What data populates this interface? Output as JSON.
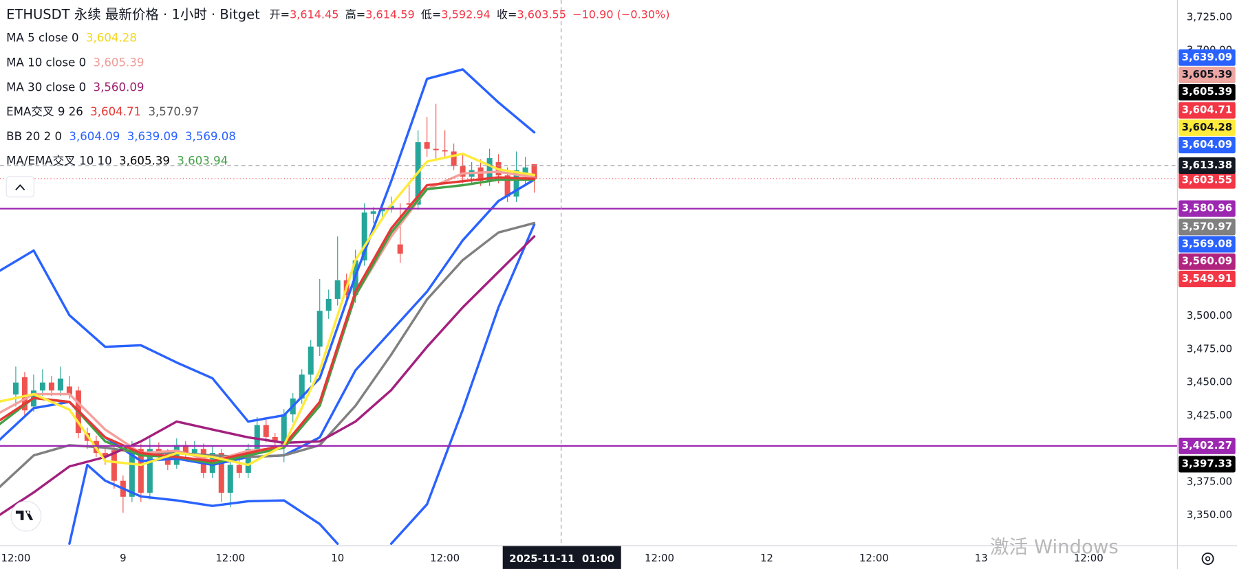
{
  "chart_data": {
    "type": "candlestick",
    "header": {
      "title": "ETHUSDT 永续 最新价格 · 1小时 · Bitget",
      "ohlc_labels": [
        "开=",
        "高=",
        "低=",
        "收="
      ],
      "ohlc_value_labels": [
        "3,614.45",
        "3,614.59",
        "3,592.94",
        "3,603.55"
      ],
      "change": "−10.90 (−0.30%)"
    },
    "legend": [
      {
        "name": "MA 5 close 0",
        "values": [
          "3,604.28"
        ],
        "colors": [
          "#f2d51b"
        ]
      },
      {
        "name": "MA 10 close 0",
        "values": [
          "3,605.39"
        ],
        "colors": [
          "#ee9c98"
        ]
      },
      {
        "name": "MA 30 close 0",
        "values": [
          "3,560.09"
        ],
        "colors": [
          "#9c1f6e"
        ]
      },
      {
        "name": "EMA交叉 9 26",
        "values": [
          "3,604.71",
          "3,570.97"
        ],
        "colors": [
          "#e53935",
          "#555555"
        ]
      },
      {
        "name": "BB 20 2 0",
        "values": [
          "3,604.09",
          "3,639.09",
          "3,569.08"
        ],
        "colors": [
          "#2962ff",
          "#2962ff",
          "#2962ff"
        ]
      },
      {
        "name": "MA/EMA交叉 10 10",
        "values": [
          "3,605.39",
          "3,603.94"
        ],
        "colors": [
          "#000000",
          "#43a047"
        ]
      }
    ],
    "xlim": [
      -1.765,
      129.9
    ],
    "ylim": [
      3327.4,
      3738.05
    ],
    "yticks": [
      {
        "value": 3725,
        "label": "3,725.00"
      },
      {
        "value": 3700,
        "label": "3,700.00"
      },
      {
        "value": 3500,
        "label": "3,500.00"
      },
      {
        "value": 3475,
        "label": "3,475.00"
      },
      {
        "value": 3450,
        "label": "3,450.00"
      },
      {
        "value": 3425,
        "label": "3,425.00"
      },
      {
        "value": 3375,
        "label": "3,375.00"
      },
      {
        "value": 3350,
        "label": "3,350.00"
      }
    ],
    "xticks": [
      {
        "value": 0,
        "label": "12:00"
      },
      {
        "value": 12,
        "label": "9"
      },
      {
        "value": 24,
        "label": "12:00"
      },
      {
        "value": 36,
        "label": "10"
      },
      {
        "value": 48,
        "label": "12:00"
      },
      {
        "value": 72,
        "label": "12:00"
      },
      {
        "value": 84,
        "label": "12"
      },
      {
        "value": 96,
        "label": "12:00"
      },
      {
        "value": 108,
        "label": "13"
      },
      {
        "value": 120,
        "label": "12:00"
      }
    ],
    "up_color": "#26a69a",
    "down_color": "#ef5350",
    "candles": {
      "x": [
        0,
        1,
        2,
        3,
        4,
        5,
        6,
        7,
        8,
        9,
        10,
        11,
        12,
        13,
        14,
        15,
        16,
        17,
        18,
        19,
        20,
        21,
        22,
        23,
        24,
        25,
        26,
        27,
        28,
        29,
        30,
        31,
        32,
        33,
        34,
        35,
        36,
        37,
        38,
        39,
        40,
        41,
        42,
        43,
        44,
        45,
        46,
        47,
        48,
        49,
        50,
        51,
        52,
        53,
        54,
        55,
        56,
        57,
        58
      ],
      "open": [
        3441,
        3454,
        3432,
        3444,
        3450,
        3444,
        3447,
        3444,
        3412,
        3406,
        3397,
        3399,
        3376,
        3364,
        3400,
        3367,
        3400,
        3397,
        3388,
        3403,
        3397,
        3400,
        3382,
        3397,
        3367,
        3388,
        3382,
        3400,
        3418,
        3409,
        3403,
        3426,
        3438,
        3456,
        3477,
        3504,
        3513,
        3527,
        3516,
        3542,
        3577,
        3579,
        3581,
        3554,
        3585,
        3584,
        3631,
        3626,
        3625,
        3624,
        3613,
        3605,
        3612,
        3602,
        3616,
        3606,
        3590,
        3605,
        3614.45
      ],
      "high": [
        3462,
        3458,
        3456,
        3460,
        3455,
        3462,
        3455,
        3447,
        3416,
        3410,
        3402,
        3404,
        3380,
        3406,
        3404,
        3408,
        3405,
        3400,
        3408,
        3406,
        3406,
        3404,
        3402,
        3400,
        3392,
        3392,
        3404,
        3424,
        3422,
        3412,
        3430,
        3442,
        3460,
        3482,
        3528,
        3520,
        3560,
        3532,
        3550,
        3585,
        3582,
        3585,
        3590,
        3585,
        3600,
        3640,
        3650,
        3660,
        3640,
        3630,
        3622,
        3616,
        3618,
        3626,
        3622,
        3612,
        3624,
        3620,
        3614.59
      ],
      "low": [
        3432,
        3425,
        3428,
        3440,
        3440,
        3440,
        3438,
        3408,
        3400,
        3394,
        3388,
        3370,
        3352,
        3360,
        3360,
        3362,
        3392,
        3384,
        3385,
        3392,
        3394,
        3378,
        3378,
        3360,
        3356,
        3378,
        3378,
        3396,
        3405,
        3400,
        3390,
        3420,
        3434,
        3450,
        3470,
        3498,
        3508,
        3512,
        3510,
        3538,
        3570,
        3574,
        3578,
        3540,
        3578,
        3580,
        3620,
        3618,
        3620,
        3610,
        3600,
        3600,
        3598,
        3598,
        3600,
        3586,
        3586,
        3598,
        3592.94
      ],
      "close": [
        3450,
        3429,
        3444,
        3450,
        3444,
        3453,
        3441,
        3412,
        3406,
        3397,
        3394,
        3376,
        3364,
        3400,
        3367,
        3400,
        3397,
        3388,
        3403,
        3397,
        3400,
        3382,
        3397,
        3367,
        3388,
        3382,
        3400,
        3418,
        3409,
        3406,
        3426,
        3438,
        3456,
        3477,
        3504,
        3513,
        3527,
        3516,
        3542,
        3578,
        3579,
        3581,
        3583,
        3547,
        3584,
        3631,
        3626,
        3625,
        3624,
        3613,
        3605,
        3610,
        3602,
        3619,
        3606,
        3590,
        3610,
        3612,
        3603.55
      ]
    },
    "lines": [
      {
        "color": "#2962ff",
        "width": 3,
        "x": [
          -2,
          2,
          6,
          10,
          14,
          18,
          22,
          26,
          30,
          34,
          38,
          42,
          46,
          50,
          54,
          58
        ],
        "values": [
          3533.3,
          3549.4,
          3500.7,
          3476.9,
          3478.1,
          3465.1,
          3453.2,
          3420.6,
          3425.3,
          3453.2,
          3530.4,
          3601.6,
          3678.7,
          3685.8,
          3660.9,
          3638.4
        ]
      },
      {
        "color": "#2962ff",
        "width": 3,
        "x": [
          6,
          8,
          10,
          14,
          18,
          22,
          26,
          30,
          34,
          36,
          39,
          42,
          46,
          50,
          54,
          58
        ],
        "values": [
          3328.6,
          3388.0,
          3376.1,
          3364.2,
          3361.2,
          3357.1,
          3360.6,
          3361.2,
          3343.4,
          3328.6,
          null,
          3328.6,
          3358.3,
          3429.5,
          3506.6,
          3569.0
        ]
      },
      {
        "color": "#2962ff",
        "width": 3,
        "x": [
          -2,
          2,
          6,
          10,
          14,
          18,
          22,
          26,
          30,
          34,
          38,
          42,
          46,
          50,
          54,
          58
        ],
        "values": [
          3405.7,
          3430.7,
          3435.4,
          3408.7,
          3390.9,
          3392.7,
          3388.0,
          3393.9,
          3395.1,
          3408.7,
          3459.2,
          3488.8,
          3518.5,
          3557.1,
          3586.7,
          3602.8
        ]
      },
      {
        "color": "#808080",
        "width": 3,
        "x": [
          -2,
          2,
          6,
          10,
          14,
          18,
          22,
          26,
          30,
          34,
          38,
          42,
          46,
          50,
          54,
          58
        ],
        "values": [
          3370.1,
          3395.1,
          3402.8,
          3401.0,
          3396.9,
          3396.9,
          3395.1,
          3393.9,
          3395.1,
          3402.8,
          3432.5,
          3471.0,
          3512.6,
          3542.2,
          3563.0,
          3570.1
        ]
      },
      {
        "color": "#a3207e",
        "width": 3,
        "x": [
          -2,
          2,
          6,
          10,
          14,
          18,
          22,
          26,
          30,
          34,
          38,
          42,
          46,
          50,
          54,
          58
        ],
        "values": [
          3349.4,
          3367.2,
          3386.8,
          3393.9,
          3405.7,
          3420.6,
          3414.6,
          3408.7,
          3404.6,
          3405.7,
          3420.6,
          3444.3,
          3476.9,
          3506.6,
          3533.3,
          3560.0
        ]
      },
      {
        "color": "#f4a09c",
        "width": 3,
        "x": [
          -2,
          2,
          6,
          10,
          14,
          18,
          22,
          26,
          30,
          34,
          38,
          42,
          46,
          50,
          54,
          58
        ],
        "values": [
          3426.5,
          3441.3,
          3441.3,
          3414.6,
          3396.9,
          3398.6,
          3390.9,
          3398.6,
          3401.0,
          3432.5,
          3515.5,
          3560.0,
          3595.6,
          3607.5,
          3608.7,
          3604.5
        ]
      },
      {
        "color": "#43a047",
        "width": 3,
        "x": [
          -2,
          2,
          6,
          10,
          14,
          18,
          22,
          26,
          30,
          34,
          38,
          42,
          46,
          50,
          54,
          58
        ],
        "values": [
          3417.6,
          3438.4,
          3435.4,
          3405.7,
          3395.1,
          3393.9,
          3389.1,
          3395.1,
          3401.0,
          3432.5,
          3515.5,
          3563.0,
          3595.6,
          3598.6,
          3602.8,
          3602.8
        ]
      },
      {
        "color": "#e53935",
        "width": 3,
        "x": [
          -2,
          2,
          6,
          10,
          14,
          18,
          22,
          26,
          30,
          34,
          38,
          42,
          46,
          50,
          54,
          58
        ],
        "values": [
          3420.6,
          3438.4,
          3435.4,
          3408.7,
          3396.9,
          3393.9,
          3390.9,
          3396.9,
          3402.8,
          3435.4,
          3518.5,
          3566.0,
          3598.6,
          3601.6,
          3604.5,
          3603.4
        ]
      },
      {
        "color": "#ffeb3b",
        "width": 3,
        "x": [
          -2,
          2,
          6,
          10,
          14,
          18,
          22,
          26,
          30,
          34,
          38,
          42,
          46,
          50,
          54,
          58
        ],
        "values": [
          3435.4,
          3441.3,
          3429.5,
          3390.9,
          3388.0,
          3396.9,
          3393.9,
          3388.0,
          3402.8,
          3459.2,
          3542.2,
          3583.8,
          3616.4,
          3622.3,
          3610.5,
          3606.3
        ]
      }
    ],
    "price_lines": [
      {
        "value": 3580.96,
        "label": "3,580.96",
        "color": "#9c27b0"
      },
      {
        "value": 3402.27,
        "label": "3,402.27",
        "color": "#9c27b0"
      }
    ],
    "badges": [
      {
        "label": "3,639.09",
        "bg": "#2962ff",
        "fg": "#ffffff"
      },
      {
        "label": "3,605.39",
        "bg": "#eda6a2",
        "fg": "#131722"
      },
      {
        "label": "3,605.39",
        "bg": "#000000",
        "fg": "#ffffff"
      },
      {
        "label": "3,604.71",
        "bg": "#f23645",
        "fg": "#ffffff"
      },
      {
        "label": "3,604.28",
        "bg": "#ffeb3b",
        "fg": "#131722"
      },
      {
        "label": "3,604.09",
        "bg": "#2962ff",
        "fg": "#ffffff"
      },
      {
        "label": "3,603.55",
        "bg": "#f23645",
        "fg": "#ffffff"
      },
      {
        "label": "3,570.97",
        "bg": "#808080",
        "fg": "#ffffff"
      },
      {
        "label": "3,569.08",
        "bg": "#2962ff",
        "fg": "#ffffff"
      },
      {
        "label": "3,560.09",
        "bg": "#b0247f",
        "fg": "#ffffff"
      },
      {
        "label": "3,549.91",
        "bg": "#f23645",
        "fg": "#ffffff"
      },
      {
        "label": "3,397.33",
        "bg": "#000000",
        "fg": "#ffffff"
      }
    ],
    "crosshair": {
      "x": 61,
      "x_label": "2025-11-11  01:00",
      "y": 3613.38,
      "y_label": "3,613.38"
    },
    "watermark": "激活 Windows"
  }
}
